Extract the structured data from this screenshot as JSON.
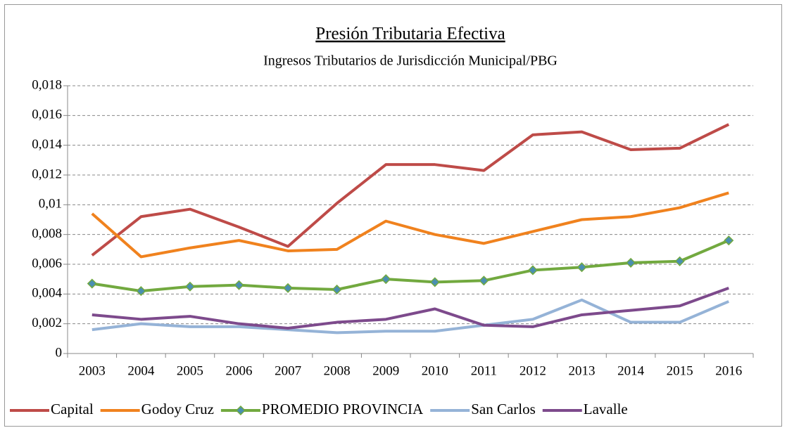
{
  "chart_data": {
    "type": "line",
    "title": "Presión Tributaria Efectiva",
    "subtitle": "Ingresos Tributarios de Jurisdicción Municipal/PBG",
    "categories": [
      "2003",
      "2004",
      "2005",
      "2006",
      "2007",
      "2008",
      "2009",
      "2010",
      "2011",
      "2012",
      "2013",
      "2014",
      "2015",
      "2016"
    ],
    "series": [
      {
        "name": "Capital",
        "color": "#be4b48",
        "values": [
          0.0066,
          0.0092,
          0.0097,
          0.0085,
          0.0072,
          0.0101,
          0.0127,
          0.0127,
          0.0123,
          0.0147,
          0.0149,
          0.0137,
          0.0138,
          0.0154
        ]
      },
      {
        "name": "Godoy Cruz",
        "color": "#f0821e",
        "values": [
          0.0094,
          0.0065,
          0.0071,
          0.0076,
          0.0069,
          0.007,
          0.0089,
          0.008,
          0.0074,
          0.0082,
          0.009,
          0.0092,
          0.0098,
          0.0108
        ]
      },
      {
        "name": "PROMEDIO PROVINCIA",
        "color": "#72a93f",
        "marker": "diamond",
        "marker_color": "#4a8fb0",
        "values": [
          0.0047,
          0.0042,
          0.0045,
          0.0046,
          0.0044,
          0.0043,
          0.005,
          0.0048,
          0.0049,
          0.0056,
          0.0058,
          0.0061,
          0.0062,
          0.0076
        ]
      },
      {
        "name": "San Carlos",
        "color": "#95b3d7",
        "values": [
          0.0016,
          0.002,
          0.0018,
          0.0018,
          0.0016,
          0.0014,
          0.0015,
          0.0015,
          0.0019,
          0.0023,
          0.0036,
          0.0021,
          0.0021,
          0.0035
        ]
      },
      {
        "name": "Lavalle",
        "color": "#7d4a8c",
        "values": [
          0.0026,
          0.0023,
          0.0025,
          0.002,
          0.0017,
          0.0021,
          0.0023,
          0.003,
          0.0019,
          0.0018,
          0.0026,
          0.0029,
          0.0032,
          0.0044
        ]
      }
    ],
    "ylim": [
      0,
      0.018
    ],
    "yticks": [
      0,
      {
        "value": 0.002,
        "label": "0,002"
      },
      {
        "value": 0.004,
        "label": "0,004"
      },
      {
        "value": 0.006,
        "label": "0,006"
      },
      {
        "value": 0.008,
        "label": "0,008"
      },
      {
        "value": 0.01,
        "label": "0,01"
      },
      {
        "value": 0.012,
        "label": "0,012"
      },
      {
        "value": 0.014,
        "label": "0,014"
      },
      {
        "value": 0.016,
        "label": "0,016"
      },
      {
        "value": 0.018,
        "label": "0,018"
      }
    ],
    "grid": true,
    "legend": "bottom"
  }
}
